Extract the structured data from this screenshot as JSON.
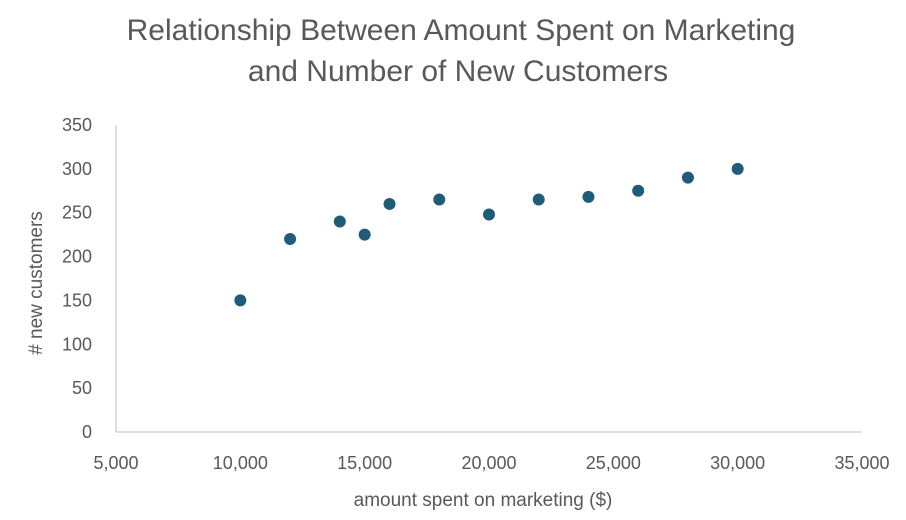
{
  "chart_data": {
    "type": "scatter",
    "title": "Relationship Between Amount Spent on Marketing and Number of New Customers",
    "title_lines": [
      "Relationship Between Amount Spent on Marketing",
      "and Number of New Customers"
    ],
    "xlabel": "amount spent on marketing ($)",
    "ylabel": "# new customers",
    "xlim": [
      5000,
      35000
    ],
    "ylim": [
      0,
      350
    ],
    "x_ticks": [
      5000,
      10000,
      15000,
      20000,
      25000,
      30000,
      35000
    ],
    "x_tick_labels": [
      "5,000",
      "10,000",
      "15,000",
      "20,000",
      "25,000",
      "30,000",
      "35,000"
    ],
    "y_ticks": [
      0,
      50,
      100,
      150,
      200,
      250,
      300,
      350
    ],
    "y_tick_labels": [
      "0",
      "50",
      "100",
      "150",
      "200",
      "250",
      "300",
      "350"
    ],
    "grid": false,
    "legend": "none",
    "series": [
      {
        "color": "#1f5c7a",
        "x": [
          10000,
          12000,
          14000,
          15000,
          16000,
          18000,
          20000,
          22000,
          24000,
          26000,
          28000,
          30000
        ],
        "y": [
          150,
          220,
          240,
          225,
          260,
          265,
          248,
          265,
          268,
          275,
          290,
          300
        ]
      }
    ]
  },
  "colors": {
    "marker": "#1f5c7a",
    "text": "#595959",
    "axis": "#bfbfbf"
  }
}
